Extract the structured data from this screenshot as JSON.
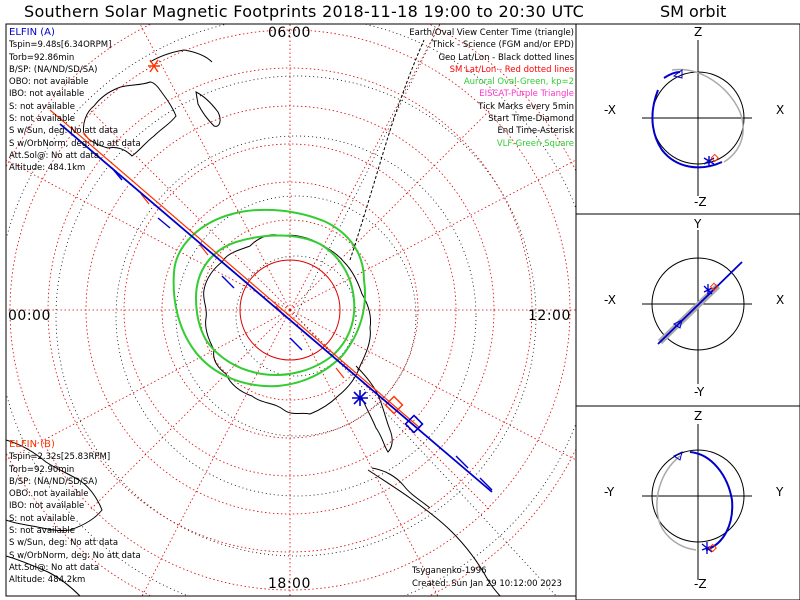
{
  "title": "Southern Solar Magnetic Footprints 2018-11-18 19:00 to 20:30 UTC",
  "orbit_title": "SM orbit",
  "clock_labels": {
    "top": "06:00",
    "left": "00:00",
    "right": "12:00",
    "bottom": "18:00"
  },
  "elfin_a": {
    "name": "ELFIN (A)",
    "lines": [
      "Tspin=9.48s[6.34ORPM]",
      "Torb=92.86min",
      "B/SP: (NA/ND/SD/SA)",
      "OBO: not available",
      "IBO: not available",
      "S: not available",
      "S: not available",
      "S w/Sun, deg: No att data",
      "S w/OrbNorm, deg: No att data",
      "Att.Sol@: No att data",
      "Altitude: 484.1km"
    ]
  },
  "elfin_b": {
    "name": "ELFIN (B)",
    "lines": [
      "Tspin=2.32s[25.83RPM]",
      "Torb=92.90min",
      "B/SP: (NA/ND/SD/SA)",
      "OBO: not available",
      "IBO: not available",
      "S: not available",
      "S: not available",
      "S w/Sun, deg: No att data",
      "S w/OrbNorm, deg: No att data",
      "Att.Sol@: No att data",
      "Altitude: 484.2km"
    ]
  },
  "legend": [
    {
      "text": "Earth/Oval View Center Time (triangle)",
      "color": "#000000"
    },
    {
      "text": "Thick - Science (FGM and/or EPD)",
      "color": "#000000"
    },
    {
      "text": "Geo Lat/Lon - Black dotted lines",
      "color": "#000000"
    },
    {
      "text": "SM Lat/Lon - Red dotted lines",
      "color": "#ff0000"
    },
    {
      "text": "Auroral Oval-Green, kp=2",
      "color": "#33cc33"
    },
    {
      "text": "EISCAT-Purple Triangle",
      "color": "#ff33cc"
    },
    {
      "text": "Tick Marks every 5min",
      "color": "#000000"
    },
    {
      "text": "Start Time-Diamond",
      "color": "#000000"
    },
    {
      "text": "End Time-Asterisk",
      "color": "#000000"
    },
    {
      "text": "VLF-Green Square",
      "color": "#33cc33"
    }
  ],
  "credits": {
    "model": "Tsyganenko-1996",
    "created": "Created: Sun Jan 29 10:12:00 2023"
  },
  "orbit_panels": [
    {
      "top": "Z",
      "bottom": "-Z",
      "left": "-X",
      "right": "X"
    },
    {
      "top": "Y",
      "bottom": "-Y",
      "left": "-X",
      "right": "X"
    },
    {
      "top": "Z",
      "bottom": "-Z",
      "left": "-Y",
      "right": "Y"
    }
  ],
  "colors": {
    "elfin_a": "#0000cc",
    "elfin_b": "#ff3300",
    "sm_grid": "#dd0000",
    "oval": "#33cc33",
    "orbit_grey": "#aaaaaa"
  }
}
